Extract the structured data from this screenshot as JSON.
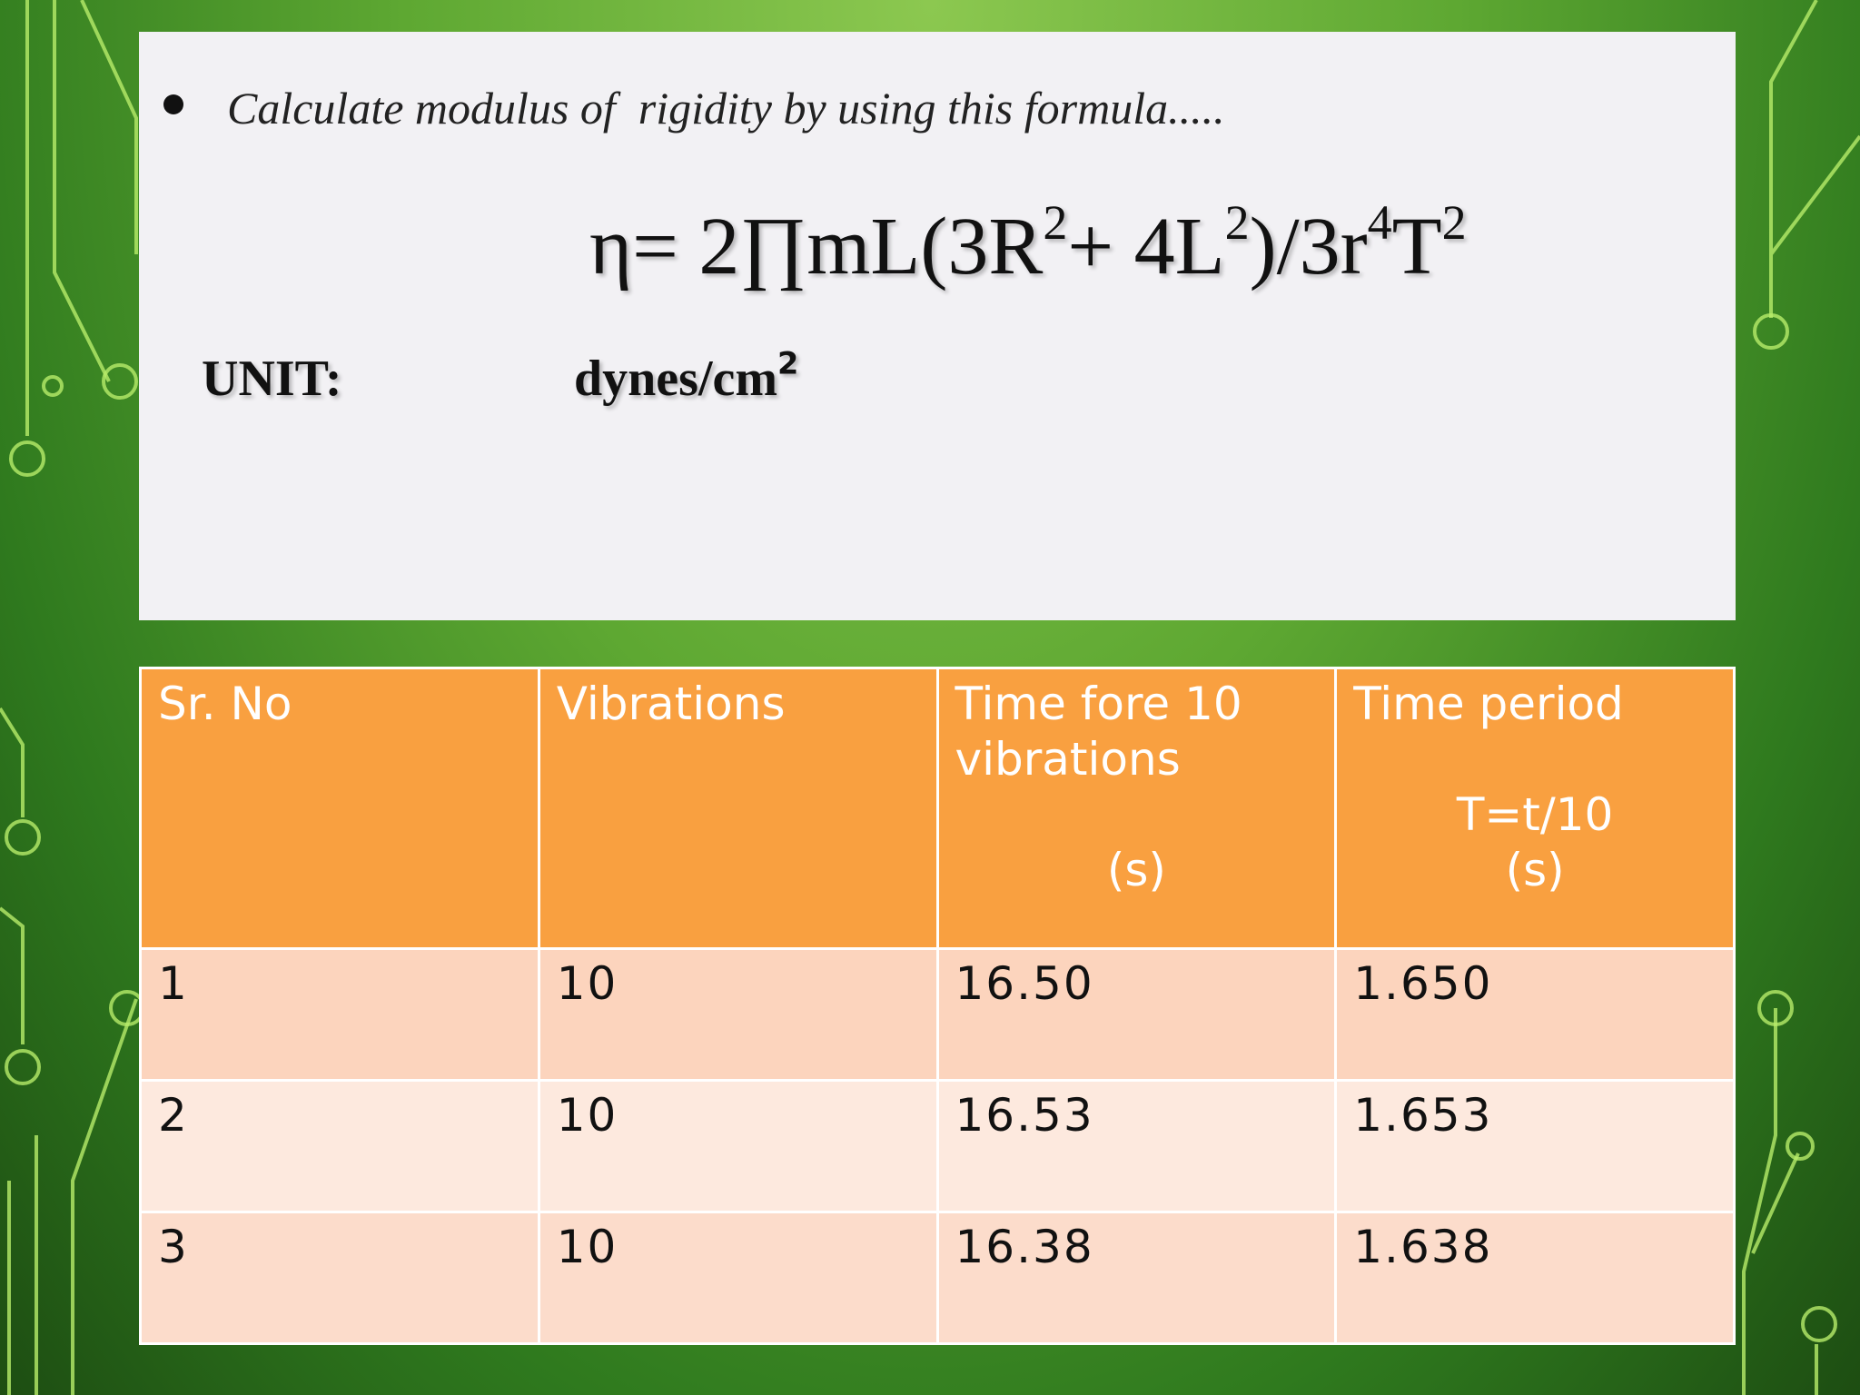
{
  "bullet": "Calculate modulus of  rigidity by using this formula.....",
  "formula": [
    {
      "base": "η= 2∏mL(3R",
      "sup": "2"
    },
    {
      "base": "+ 4L",
      "sup": "2"
    },
    {
      "base": ")/3r",
      "sup": "4"
    },
    {
      "base": "T",
      "sup": "2"
    }
  ],
  "unit": {
    "label": "UNIT:",
    "value": "dynes/cm",
    "sup": "2"
  },
  "table": {
    "header": [
      [
        "Sr. No"
      ],
      [
        "Vibrations"
      ],
      [
        "Time fore 10",
        "vibrations",
        "(s)"
      ],
      [
        "Time  period",
        "T=t/10",
        "(s)"
      ]
    ],
    "rows": [
      [
        "1",
        "10",
        "16.50",
        "1.650"
      ],
      [
        "2",
        "10",
        "16.53",
        "1.653"
      ],
      [
        "3",
        "10",
        "16.38",
        "1.638"
      ]
    ]
  }
}
